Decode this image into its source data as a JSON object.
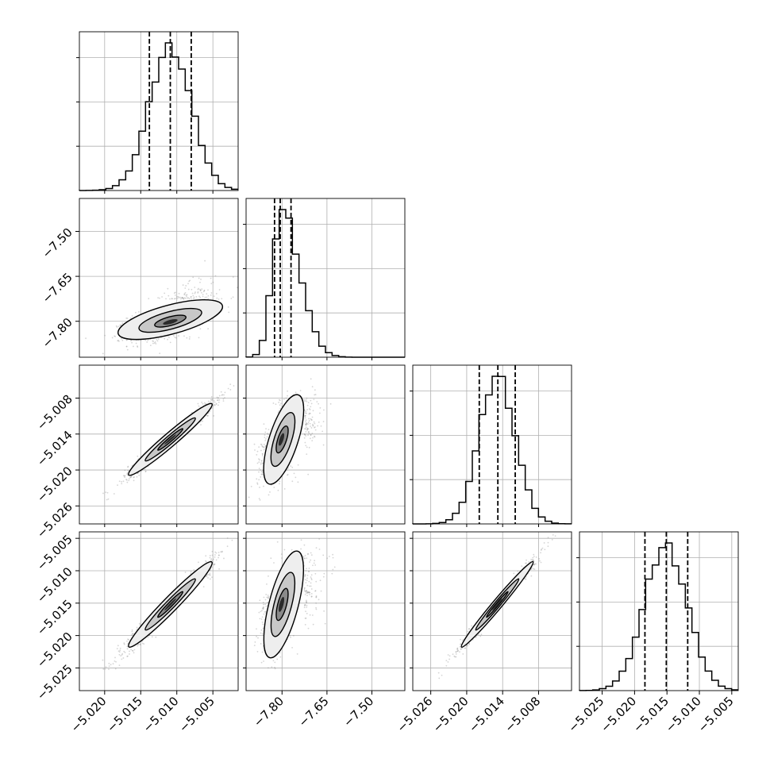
{
  "chart_data": {
    "type": "corner",
    "grid": true,
    "color": "#000000",
    "hist_bins": 24,
    "quantile_style": "dashed",
    "point_color": "#888888",
    "parameters": [
      {
        "range": [
          -5.0235,
          -5.0015
        ],
        "ticks": [
          -5.02,
          -5.015,
          -5.01,
          -5.005
        ],
        "tick_labels": [
          "−5.020",
          "−5.015",
          "−5.010",
          "−5.005"
        ],
        "quantiles": [
          -5.0138,
          -5.0109,
          -5.008
        ],
        "mean": -5.0109,
        "sd": 0.0029
      },
      {
        "range": [
          -7.92,
          -7.39
        ],
        "ticks": [
          -7.8,
          -7.65,
          -7.5
        ],
        "tick_labels": [
          "−7.80",
          "−7.65",
          "−7.50"
        ],
        "quantiles": [
          -7.825,
          -7.806,
          -7.77
        ],
        "mean": -7.802,
        "sd": 0.03
      },
      {
        "range": [
          -5.029,
          -5.0025
        ],
        "ticks": [
          -5.026,
          -5.02,
          -5.014,
          -5.008
        ],
        "tick_labels": [
          "−5.026",
          "−5.020",
          "−5.014",
          "−5.008"
        ],
        "quantiles": [
          -5.0179,
          -5.0148,
          -5.0119
        ],
        "mean": -5.0149,
        "sd": 0.003
      },
      {
        "range": [
          -5.0285,
          -5.004
        ],
        "ticks": [
          -5.025,
          -5.02,
          -5.015,
          -5.01,
          -5.005
        ],
        "tick_labels": [
          "−5.025",
          "−5.020",
          "−5.015",
          "−5.010",
          "−5.005"
        ],
        "quantiles": [
          -5.0184,
          -5.0151,
          -5.0118
        ],
        "mean": -5.0152,
        "sd": 0.0033
      }
    ],
    "correlations": [
      {
        "row": 1,
        "col": 0,
        "rho": 0.55
      },
      {
        "row": 2,
        "col": 0,
        "rho": 0.97
      },
      {
        "row": 2,
        "col": 1,
        "rho": 0.55
      },
      {
        "row": 3,
        "col": 0,
        "rho": 0.97
      },
      {
        "row": 3,
        "col": 1,
        "rho": 0.55
      },
      {
        "row": 3,
        "col": 2,
        "rho": 0.985
      }
    ]
  }
}
